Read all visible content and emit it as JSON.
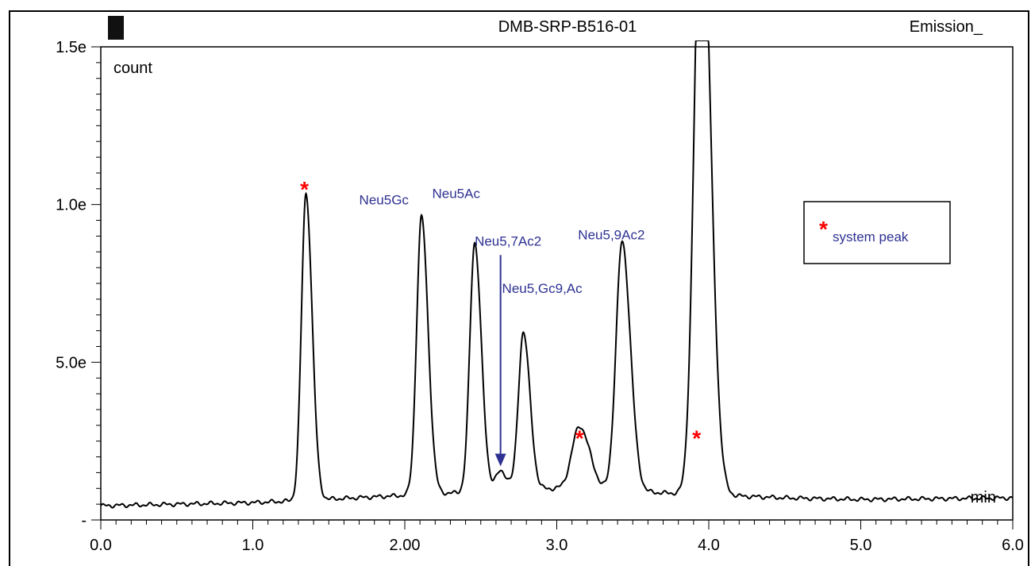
{
  "chart_data": {
    "type": "line",
    "title": "DMB-SRP-B516-01",
    "corner_label": "Emission_",
    "ylabel": "count",
    "xlabel": "min",
    "xlim": [
      0.0,
      6.0
    ],
    "ylim": [
      0.0,
      1.5
    ],
    "x_ticks": [
      {
        "value": 0.0,
        "label": "0.0"
      },
      {
        "value": 1.0,
        "label": "1.0"
      },
      {
        "value": 2.0,
        "label": "2.00"
      },
      {
        "value": 3.0,
        "label": "3.0"
      },
      {
        "value": 4.0,
        "label": "4.0"
      },
      {
        "value": 5.0,
        "label": "5.0"
      },
      {
        "value": 6.0,
        "label": "6.0"
      }
    ],
    "y_ticks": [
      {
        "value": 0.0,
        "label": "-"
      },
      {
        "value": 0.5,
        "label": "5.0e"
      },
      {
        "value": 1.0,
        "label": "1.0e"
      },
      {
        "value": 1.5,
        "label": "1.5e"
      }
    ],
    "baseline": [
      [
        0.0,
        0.045
      ],
      [
        0.5,
        0.05
      ],
      [
        1.0,
        0.055
      ],
      [
        1.25,
        0.06
      ],
      [
        2.5,
        0.09
      ],
      [
        3.0,
        0.1
      ],
      [
        3.5,
        0.09
      ],
      [
        4.5,
        0.07
      ],
      [
        5.0,
        0.065
      ],
      [
        6.0,
        0.07
      ]
    ],
    "peaks": [
      {
        "x": 1.35,
        "height": 0.97,
        "width": 0.03
      },
      {
        "x": 2.11,
        "height": 0.88,
        "width": 0.032
      },
      {
        "x": 2.46,
        "height": 0.79,
        "width": 0.032
      },
      {
        "x": 2.63,
        "height": 0.06,
        "width": 0.035
      },
      {
        "x": 2.78,
        "height": 0.5,
        "width": 0.032
      },
      {
        "x": 3.15,
        "height": 0.2,
        "width": 0.05
      },
      {
        "x": 3.43,
        "height": 0.79,
        "width": 0.04
      },
      {
        "x": 3.95,
        "height": 2.0,
        "width": 0.045
      }
    ],
    "annotations": [
      {
        "text": "Neu5Gc",
        "x": 1.7,
        "y": 1.0
      },
      {
        "text": "Neu5Ac",
        "x": 2.18,
        "y": 1.02
      },
      {
        "text": "Neu5,7Ac2",
        "x": 2.46,
        "y": 0.87
      },
      {
        "text": "Neu5,Gc9,Ac",
        "x": 2.64,
        "y": 0.72
      },
      {
        "text": "Neu5,9Ac2",
        "x": 3.14,
        "y": 0.89
      }
    ],
    "system_peak_markers": [
      {
        "x": 1.34,
        "y": 1.07
      },
      {
        "x": 3.15,
        "y": 0.28
      },
      {
        "x": 3.92,
        "y": 0.28
      }
    ],
    "arrow": {
      "x": 2.63,
      "y_from": 0.84,
      "y_to": 0.17
    },
    "legend": {
      "placement": "right",
      "marker": "*",
      "text": "system peak"
    }
  }
}
